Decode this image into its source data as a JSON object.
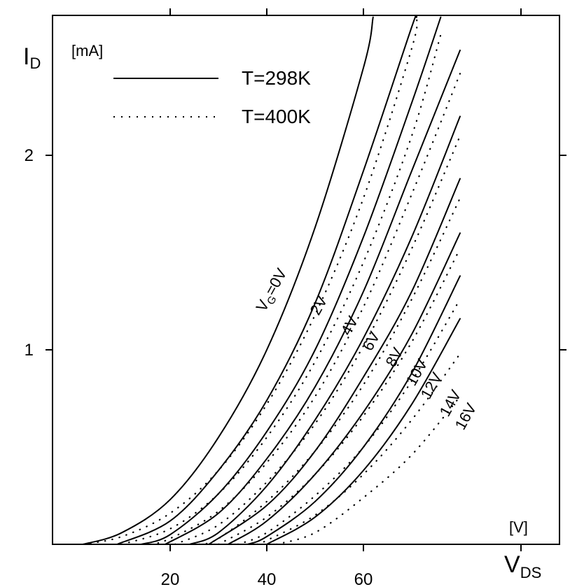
{
  "chart_data": {
    "type": "line",
    "x_axis": {
      "label_main": "V",
      "label_sub": "DS",
      "unit": "[V]",
      "range": [
        0,
        80
      ],
      "ticks": [
        20,
        40,
        60
      ]
    },
    "y_axis": {
      "label_main": "I",
      "label_sub": "D",
      "unit": "[mA]",
      "range": [
        0,
        2.7
      ],
      "ticks": [
        1,
        2
      ]
    },
    "legend": {
      "position": "top-left",
      "entries": [
        {
          "label": "T=298K",
          "style": "solid"
        },
        {
          "label": "T=400K",
          "style": "dotted"
        }
      ]
    },
    "annotations": {
      "vg0_main": "V",
      "vg0_sub": "G",
      "vg0_rest": "=0V",
      "others": [
        "2V",
        "4V",
        "6V",
        "8V",
        "10V",
        "12V",
        "14V",
        "16V"
      ]
    },
    "series": [
      {
        "vg": 0,
        "temperature": "298K",
        "style": "solid",
        "x": [
          2,
          10,
          20,
          30,
          40,
          50,
          60,
          62
        ],
        "y": [
          0.0,
          0.06,
          0.23,
          0.55,
          1.0,
          1.63,
          2.45,
          2.71
        ]
      },
      {
        "vg": 2,
        "temperature": "298K",
        "style": "solid",
        "x": [
          9,
          20,
          30,
          40,
          50,
          60,
          70,
          71
        ],
        "y": [
          0.0,
          0.12,
          0.38,
          0.74,
          1.24,
          1.92,
          2.66,
          2.71
        ]
      },
      {
        "vg": 4,
        "temperature": "298K",
        "style": "solid",
        "x": [
          14,
          20,
          30,
          40,
          50,
          60,
          70,
          76
        ],
        "y": [
          0.0,
          0.05,
          0.26,
          0.58,
          1.0,
          1.58,
          2.27,
          2.71
        ]
      },
      {
        "vg": 6,
        "temperature": "298K",
        "style": "solid",
        "x": [
          19,
          30,
          40,
          50,
          60,
          70,
          80
        ],
        "y": [
          0.0,
          0.16,
          0.44,
          0.81,
          1.3,
          1.92,
          2.54
        ]
      },
      {
        "vg": 8,
        "temperature": "298K",
        "style": "solid",
        "x": [
          24,
          30,
          40,
          50,
          60,
          70,
          80
        ],
        "y": [
          0.0,
          0.06,
          0.3,
          0.64,
          1.06,
          1.58,
          2.2
        ]
      },
      {
        "vg": 10,
        "temperature": "298K",
        "style": "solid",
        "x": [
          28,
          40,
          50,
          60,
          70,
          80
        ],
        "y": [
          0.0,
          0.2,
          0.48,
          0.86,
          1.3,
          1.88
        ]
      },
      {
        "vg": 12,
        "temperature": "298K",
        "style": "solid",
        "x": [
          32,
          40,
          50,
          60,
          70,
          80
        ],
        "y": [
          0.0,
          0.12,
          0.36,
          0.68,
          1.08,
          1.6
        ]
      },
      {
        "vg": 14,
        "temperature": "298K",
        "style": "solid",
        "x": [
          36,
          40,
          50,
          60,
          70,
          80
        ],
        "y": [
          0.0,
          0.04,
          0.22,
          0.5,
          0.88,
          1.38
        ]
      },
      {
        "vg": 16,
        "temperature": "298K",
        "style": "solid",
        "x": [
          40,
          50,
          60,
          70,
          80
        ],
        "y": [
          0.0,
          0.14,
          0.38,
          0.72,
          1.16
        ]
      },
      {
        "vg": 0,
        "temperature": "400K",
        "style": "dotted",
        "x": [
          2,
          10,
          20,
          30,
          40,
          50,
          60,
          70,
          71
        ],
        "y": [
          0.0,
          0.04,
          0.16,
          0.38,
          0.72,
          1.18,
          1.78,
          2.55,
          2.71
        ]
      },
      {
        "vg": 2,
        "temperature": "400K",
        "style": "dotted",
        "x": [
          10,
          20,
          30,
          40,
          50,
          60,
          70,
          76
        ],
        "y": [
          0.0,
          0.08,
          0.26,
          0.55,
          0.94,
          1.45,
          2.1,
          2.62
        ]
      },
      {
        "vg": 4,
        "temperature": "400K",
        "style": "dotted",
        "x": [
          16,
          20,
          30,
          40,
          50,
          60,
          70,
          80
        ],
        "y": [
          0.0,
          0.03,
          0.17,
          0.42,
          0.76,
          1.22,
          1.8,
          2.42
        ]
      },
      {
        "vg": 6,
        "temperature": "400K",
        "style": "dotted",
        "x": [
          21,
          30,
          40,
          50,
          60,
          70,
          80
        ],
        "y": [
          0.0,
          0.1,
          0.32,
          0.62,
          1.02,
          1.52,
          2.1
        ]
      },
      {
        "vg": 8,
        "temperature": "400K",
        "style": "dotted",
        "x": [
          26,
          30,
          40,
          50,
          60,
          70,
          80
        ],
        "y": [
          0.0,
          0.03,
          0.22,
          0.48,
          0.82,
          1.26,
          1.78
        ]
      },
      {
        "vg": 10,
        "temperature": "400K",
        "style": "dotted",
        "x": [
          30,
          40,
          50,
          60,
          70,
          80
        ],
        "y": [
          0.0,
          0.14,
          0.36,
          0.66,
          1.04,
          1.52
        ]
      },
      {
        "vg": 12,
        "temperature": "400K",
        "style": "dotted",
        "x": [
          34,
          40,
          50,
          60,
          70,
          80
        ],
        "y": [
          0.0,
          0.06,
          0.25,
          0.5,
          0.84,
          1.26
        ]
      },
      {
        "vg": 14,
        "temperature": "400K",
        "style": "dotted",
        "x": [
          38,
          40,
          50,
          60,
          70,
          80
        ],
        "y": [
          0.0,
          0.02,
          0.15,
          0.36,
          0.64,
          0.98
        ]
      },
      {
        "vg": 16,
        "temperature": "400K",
        "style": "dotted",
        "x": [
          42,
          50,
          60,
          70,
          80
        ],
        "y": [
          0.0,
          0.06,
          0.24,
          0.46,
          0.76
        ]
      }
    ]
  }
}
